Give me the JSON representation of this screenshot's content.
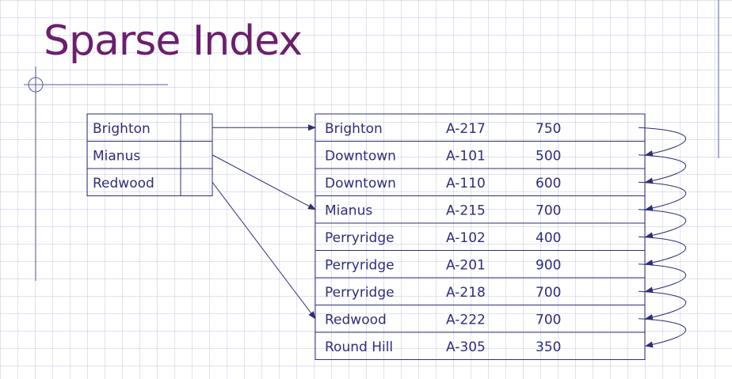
{
  "title": "Sparse Index",
  "index_entries": [
    {
      "key": "Brighton"
    },
    {
      "key": "Mianus"
    },
    {
      "key": "Redwood"
    }
  ],
  "records": [
    {
      "branch": "Brighton",
      "account": "A-217",
      "balance": "750"
    },
    {
      "branch": "Downtown",
      "account": "A-101",
      "balance": "500"
    },
    {
      "branch": "Downtown",
      "account": "A-110",
      "balance": "600"
    },
    {
      "branch": "Mianus",
      "account": "A-215",
      "balance": "700"
    },
    {
      "branch": "Perryridge",
      "account": "A-102",
      "balance": "400"
    },
    {
      "branch": "Perryridge",
      "account": "A-201",
      "balance": "900"
    },
    {
      "branch": "Perryridge",
      "account": "A-218",
      "balance": "700"
    },
    {
      "branch": "Redwood",
      "account": "A-222",
      "balance": "700"
    },
    {
      "branch": "Round Hill",
      "account": "A-305",
      "balance": "350"
    }
  ],
  "index_pointers": [
    0,
    3,
    7
  ],
  "colors": {
    "title": "#6b1f6d",
    "lines": "#2e2e7a",
    "grid": "#9696d2"
  }
}
